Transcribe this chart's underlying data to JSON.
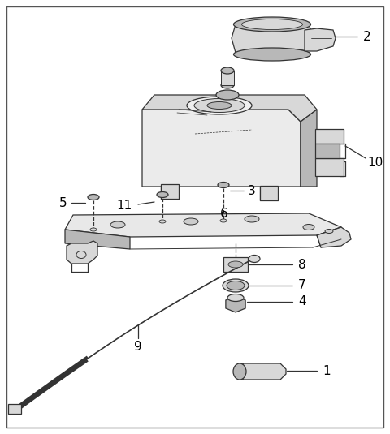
{
  "background_color": "#ffffff",
  "border_color": "#4a4a4a",
  "line_color": "#333333",
  "label_color": "#000000",
  "figsize": [
    4.8,
    5.35
  ],
  "dpi": 100,
  "gray_light": "#d8d8d8",
  "gray_mid": "#b8b8b8",
  "gray_dark": "#888888"
}
